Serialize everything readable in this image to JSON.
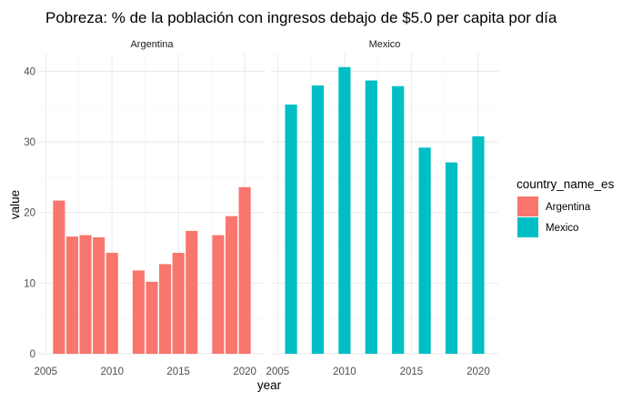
{
  "chart_data": {
    "type": "bar",
    "title": "Pobreza: % de la población con ingresos debajo de $5.0 per capita por día",
    "xlabel": "year",
    "ylabel": "value",
    "xlim": [
      2004.5,
      2021.5
    ],
    "ylim": [
      0,
      42.5
    ],
    "x_ticks": [
      2005,
      2010,
      2015,
      2020
    ],
    "y_ticks": [
      0,
      10,
      20,
      30,
      40
    ],
    "legend": {
      "title": "country_name_es",
      "position": "right",
      "entries": [
        "Argentina",
        "Mexico"
      ]
    },
    "colors": {
      "Argentina": "#f8766d",
      "Mexico": "#00bfc4"
    },
    "facets": [
      {
        "name": "Argentina",
        "x": [
          2006,
          2007,
          2008,
          2009,
          2010,
          2012,
          2013,
          2014,
          2015,
          2016,
          2018,
          2019,
          2020
        ],
        "values": [
          21.7,
          16.6,
          16.8,
          16.5,
          14.3,
          11.8,
          10.2,
          12.7,
          14.3,
          17.4,
          16.8,
          19.5,
          23.6
        ]
      },
      {
        "name": "Mexico",
        "x": [
          2006,
          2008,
          2010,
          2012,
          2014,
          2016,
          2018,
          2020
        ],
        "values": [
          35.3,
          38.0,
          40.6,
          38.7,
          37.9,
          29.2,
          27.1,
          30.8
        ]
      }
    ]
  }
}
